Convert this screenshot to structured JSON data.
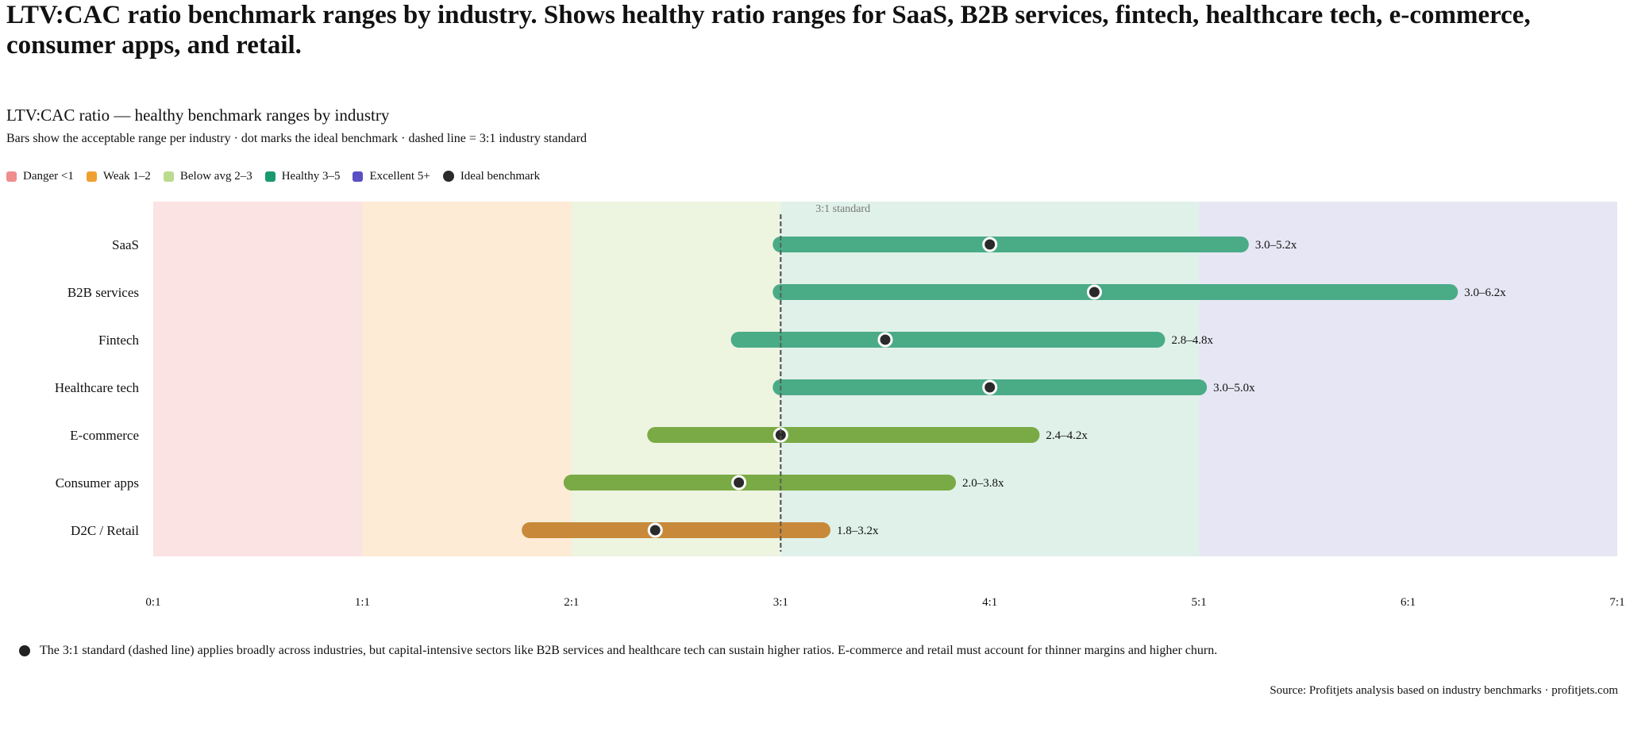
{
  "heading": "LTV:CAC ratio benchmark ranges by industry. Shows healthy ratio ranges for SaaS, B2B services, fintech, healthcare tech, e-commerce, consumer apps, and retail.",
  "legend": [
    {
      "label": "Danger <1",
      "color": "#f08e8e"
    },
    {
      "label": "Weak 1–2",
      "color": "#f0a030"
    },
    {
      "label": "Below avg 2–3",
      "color": "#bcdb8e"
    },
    {
      "label": "Healthy 3–5",
      "color": "#1a9a6c"
    },
    {
      "label": "Excellent 5+",
      "color": "#5a4fc4"
    },
    {
      "label": "Ideal benchmark",
      "color": "#2a2a2a"
    }
  ],
  "footnote": "The 3:1 standard (dashed line) applies broadly across industries, but capital-intensive sectors like B2B services and healthcare tech can sustain higher ratios. E-commerce and retail must account for thinner margins and higher churn.",
  "source": "Source: Profitjets analysis based on industry benchmarks · profitjets.com",
  "chart_data": {
    "type": "bar",
    "title": "LTV:CAC ratio — healthy benchmark ranges by industry",
    "subtitle": "Bars show the acceptable range per industry · dot marks the ideal benchmark · dashed line = 3:1 industry standard",
    "xlim": [
      0,
      7
    ],
    "xticks": [
      "0:1",
      "1:1",
      "2:1",
      "3:1",
      "4:1",
      "5:1",
      "6:1",
      "7:1"
    ],
    "reference_line": {
      "x": 3,
      "label": "3:1 standard",
      "style": "dashed"
    },
    "zones": [
      {
        "from": 0,
        "to": 1,
        "color": "#fbe3e3"
      },
      {
        "from": 1,
        "to": 2,
        "color": "#fdebd6"
      },
      {
        "from": 2,
        "to": 3,
        "color": "#edf4e0"
      },
      {
        "from": 3,
        "to": 5,
        "color": "#e0f1ea"
      },
      {
        "from": 5,
        "to": 7,
        "color": "#e6e6f4"
      }
    ],
    "categories": [
      "SaaS",
      "B2B services",
      "Fintech",
      "Healthcare tech",
      "E-commerce",
      "Consumer apps",
      "D2C / Retail"
    ],
    "series": [
      {
        "category": "SaaS",
        "low": 3.0,
        "high": 5.2,
        "ideal": 4.0,
        "label": "3.0–5.2x",
        "color": "#4aab87"
      },
      {
        "category": "B2B services",
        "low": 3.0,
        "high": 6.2,
        "ideal": 4.5,
        "label": "3.0–6.2x",
        "color": "#4aab87"
      },
      {
        "category": "Fintech",
        "low": 2.8,
        "high": 4.8,
        "ideal": 3.5,
        "label": "2.8–4.8x",
        "color": "#4aab87"
      },
      {
        "category": "Healthcare tech",
        "low": 3.0,
        "high": 5.0,
        "ideal": 4.0,
        "label": "3.0–5.0x",
        "color": "#4aab87"
      },
      {
        "category": "E-commerce",
        "low": 2.4,
        "high": 4.2,
        "ideal": 3.0,
        "label": "2.4–4.2x",
        "color": "#7aaa45"
      },
      {
        "category": "Consumer apps",
        "low": 2.0,
        "high": 3.8,
        "ideal": 2.8,
        "label": "2.0–3.8x",
        "color": "#7aaa45"
      },
      {
        "category": "D2C / Retail",
        "low": 1.8,
        "high": 3.2,
        "ideal": 2.4,
        "label": "1.8–3.2x",
        "color": "#c88a3a"
      }
    ]
  }
}
